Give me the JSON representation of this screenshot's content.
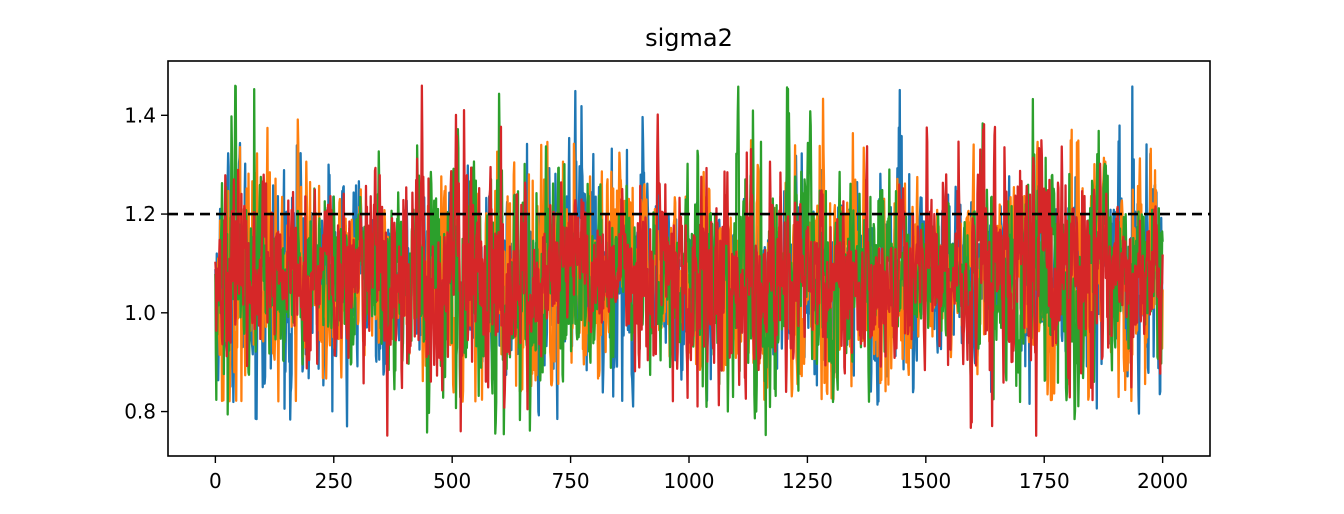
{
  "chart_data": {
    "type": "line",
    "title": "sigma2",
    "xlabel": "",
    "ylabel": "",
    "xlim": [
      -100,
      2100
    ],
    "ylim": [
      0.71,
      1.51
    ],
    "x_ticks": [
      0,
      250,
      500,
      750,
      1000,
      1250,
      1500,
      1750,
      2000
    ],
    "y_ticks": [
      0.8,
      1.0,
      1.2,
      1.4
    ],
    "reference_line": {
      "y": 1.2,
      "style": "dashed",
      "color": "#000000"
    },
    "grid": false,
    "legend": "none",
    "trace": {
      "iterations": 2000,
      "mean": 1.07,
      "envelope": [
        [
          0,
          0.82,
          1.37
        ],
        [
          500,
          0.85,
          1.39
        ],
        [
          1000,
          0.83,
          1.38
        ],
        [
          1500,
          0.82,
          1.46
        ],
        [
          2000,
          0.86,
          1.38
        ]
      ]
    },
    "series": [
      {
        "color": "#1f77b4",
        "min": 0.77,
        "max": 1.46
      },
      {
        "color": "#ff7f0e",
        "min": 0.82,
        "max": 1.44
      },
      {
        "color": "#2ca02c",
        "min": 0.75,
        "max": 1.46
      },
      {
        "color": "#d62728",
        "min": 0.745,
        "max": 1.47
      }
    ]
  }
}
